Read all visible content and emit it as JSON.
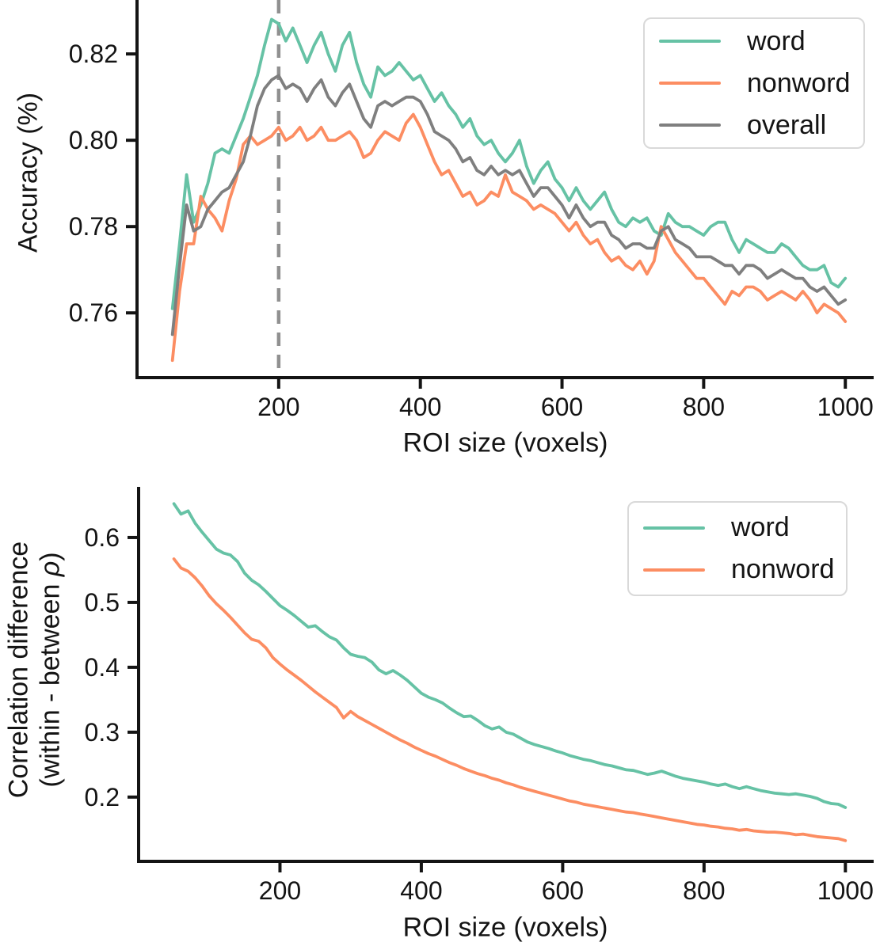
{
  "figure_colors": {
    "word": "#66c2a5",
    "nonword": "#fc8d62",
    "overall": "#7f7f7f",
    "vline": "#909090",
    "spine": "#141414",
    "text": "#141414",
    "legend_border": "#d9d9d9"
  },
  "chart_data": [
    {
      "type": "line",
      "title": "",
      "xlabel": "ROI size (voxels)",
      "ylabel": "Accuracy (%)",
      "xlim": [
        0,
        1040
      ],
      "ylim": [
        0.745,
        0.8325
      ],
      "xticks": [
        200,
        400,
        600,
        800,
        1000
      ],
      "xtick_labels": [
        "200",
        "400",
        "600",
        "800",
        "1000"
      ],
      "ytick_values": [
        0.76,
        0.78,
        0.8,
        0.82
      ],
      "ytick_labels": [
        "0.76",
        "0.78",
        "0.80",
        "0.82"
      ],
      "grid": false,
      "legend_position": "upper right",
      "vline_x": 200,
      "x": [
        50,
        60,
        70,
        80,
        90,
        100,
        110,
        120,
        130,
        140,
        150,
        160,
        170,
        180,
        190,
        200,
        210,
        220,
        230,
        240,
        250,
        260,
        270,
        280,
        290,
        300,
        310,
        320,
        330,
        340,
        350,
        360,
        370,
        380,
        390,
        400,
        410,
        420,
        430,
        440,
        450,
        460,
        470,
        480,
        490,
        500,
        510,
        520,
        530,
        540,
        550,
        560,
        570,
        580,
        590,
        600,
        610,
        620,
        630,
        640,
        650,
        660,
        670,
        680,
        690,
        700,
        710,
        720,
        730,
        740,
        750,
        760,
        770,
        780,
        790,
        800,
        810,
        820,
        830,
        840,
        850,
        860,
        870,
        880,
        890,
        900,
        910,
        920,
        930,
        940,
        950,
        960,
        970,
        980,
        990,
        1000
      ],
      "series": [
        {
          "name": "word",
          "color": "#66c2a5",
          "values": [
            0.761,
            0.776,
            0.792,
            0.781,
            0.785,
            0.79,
            0.797,
            0.798,
            0.797,
            0.801,
            0.805,
            0.81,
            0.815,
            0.822,
            0.828,
            0.827,
            0.823,
            0.826,
            0.822,
            0.818,
            0.822,
            0.825,
            0.82,
            0.816,
            0.822,
            0.825,
            0.818,
            0.813,
            0.81,
            0.817,
            0.815,
            0.816,
            0.818,
            0.816,
            0.814,
            0.815,
            0.812,
            0.809,
            0.811,
            0.808,
            0.806,
            0.803,
            0.805,
            0.801,
            0.799,
            0.8,
            0.797,
            0.795,
            0.797,
            0.8,
            0.794,
            0.79,
            0.793,
            0.795,
            0.791,
            0.789,
            0.786,
            0.789,
            0.786,
            0.784,
            0.786,
            0.788,
            0.784,
            0.781,
            0.78,
            0.782,
            0.781,
            0.782,
            0.779,
            0.778,
            0.783,
            0.781,
            0.78,
            0.78,
            0.779,
            0.778,
            0.78,
            0.781,
            0.781,
            0.777,
            0.774,
            0.777,
            0.776,
            0.775,
            0.774,
            0.774,
            0.776,
            0.775,
            0.773,
            0.771,
            0.77,
            0.77,
            0.771,
            0.767,
            0.766,
            0.768
          ]
        },
        {
          "name": "nonword",
          "color": "#fc8d62",
          "values": [
            0.749,
            0.765,
            0.776,
            0.776,
            0.787,
            0.784,
            0.782,
            0.779,
            0.786,
            0.791,
            0.799,
            0.801,
            0.799,
            0.8,
            0.801,
            0.803,
            0.8,
            0.801,
            0.803,
            0.8,
            0.801,
            0.803,
            0.8,
            0.8,
            0.801,
            0.802,
            0.8,
            0.796,
            0.797,
            0.8,
            0.802,
            0.801,
            0.8,
            0.804,
            0.806,
            0.803,
            0.799,
            0.795,
            0.792,
            0.793,
            0.79,
            0.787,
            0.788,
            0.785,
            0.786,
            0.788,
            0.787,
            0.792,
            0.788,
            0.787,
            0.786,
            0.784,
            0.785,
            0.784,
            0.783,
            0.781,
            0.779,
            0.781,
            0.778,
            0.776,
            0.777,
            0.774,
            0.772,
            0.773,
            0.771,
            0.77,
            0.772,
            0.769,
            0.772,
            0.78,
            0.777,
            0.774,
            0.772,
            0.77,
            0.768,
            0.768,
            0.766,
            0.764,
            0.762,
            0.765,
            0.764,
            0.766,
            0.766,
            0.765,
            0.763,
            0.764,
            0.765,
            0.764,
            0.763,
            0.765,
            0.763,
            0.76,
            0.762,
            0.761,
            0.76,
            0.758
          ]
        },
        {
          "name": "overall",
          "color": "#7f7f7f",
          "values": [
            0.755,
            0.771,
            0.785,
            0.779,
            0.78,
            0.784,
            0.786,
            0.788,
            0.789,
            0.792,
            0.795,
            0.801,
            0.808,
            0.812,
            0.814,
            0.815,
            0.812,
            0.813,
            0.812,
            0.809,
            0.812,
            0.814,
            0.81,
            0.808,
            0.811,
            0.813,
            0.809,
            0.805,
            0.803,
            0.808,
            0.809,
            0.808,
            0.809,
            0.81,
            0.81,
            0.809,
            0.806,
            0.802,
            0.801,
            0.8,
            0.798,
            0.795,
            0.796,
            0.793,
            0.792,
            0.794,
            0.792,
            0.793,
            0.792,
            0.793,
            0.79,
            0.787,
            0.789,
            0.789,
            0.787,
            0.785,
            0.782,
            0.785,
            0.782,
            0.78,
            0.781,
            0.781,
            0.778,
            0.777,
            0.775,
            0.776,
            0.776,
            0.775,
            0.775,
            0.779,
            0.78,
            0.777,
            0.776,
            0.775,
            0.773,
            0.773,
            0.773,
            0.772,
            0.771,
            0.771,
            0.769,
            0.771,
            0.771,
            0.77,
            0.768,
            0.769,
            0.77,
            0.769,
            0.768,
            0.768,
            0.766,
            0.765,
            0.766,
            0.764,
            0.762,
            0.763
          ]
        }
      ]
    },
    {
      "type": "line",
      "title": "",
      "xlabel": "ROI size (voxels)",
      "ylabel_line1": "Correlation difference",
      "ylabel_line2_prefix": "(within - between ",
      "ylabel_rho": "ρ",
      "ylabel_line2_suffix": ")",
      "xlim": [
        0,
        1040
      ],
      "ylim": [
        0.101,
        0.678
      ],
      "xticks": [
        200,
        400,
        600,
        800,
        1000
      ],
      "xtick_labels": [
        "200",
        "400",
        "600",
        "800",
        "1000"
      ],
      "ytick_values": [
        0.2,
        0.3,
        0.4,
        0.5,
        0.6
      ],
      "ytick_labels": [
        "0.2",
        "0.3",
        "0.4",
        "0.5",
        "0.6"
      ],
      "grid": false,
      "legend_position": "upper right",
      "x": [
        50,
        60,
        70,
        80,
        90,
        100,
        110,
        120,
        130,
        140,
        150,
        160,
        170,
        180,
        190,
        200,
        210,
        220,
        230,
        240,
        250,
        260,
        270,
        280,
        290,
        300,
        310,
        320,
        330,
        340,
        350,
        360,
        370,
        380,
        390,
        400,
        410,
        420,
        430,
        440,
        450,
        460,
        470,
        480,
        490,
        500,
        510,
        520,
        530,
        540,
        550,
        560,
        570,
        580,
        590,
        600,
        610,
        620,
        630,
        640,
        650,
        660,
        670,
        680,
        690,
        700,
        710,
        720,
        730,
        740,
        750,
        760,
        770,
        780,
        790,
        800,
        810,
        820,
        830,
        840,
        850,
        860,
        870,
        880,
        890,
        900,
        910,
        920,
        930,
        940,
        950,
        960,
        970,
        980,
        990,
        1000
      ],
      "series": [
        {
          "name": "word",
          "color": "#66c2a5",
          "values": [
            0.652,
            0.636,
            0.641,
            0.622,
            0.608,
            0.595,
            0.582,
            0.576,
            0.573,
            0.563,
            0.545,
            0.534,
            0.527,
            0.517,
            0.506,
            0.495,
            0.488,
            0.48,
            0.471,
            0.462,
            0.464,
            0.455,
            0.447,
            0.442,
            0.43,
            0.42,
            0.417,
            0.415,
            0.408,
            0.396,
            0.39,
            0.395,
            0.388,
            0.38,
            0.37,
            0.36,
            0.354,
            0.35,
            0.345,
            0.337,
            0.33,
            0.324,
            0.325,
            0.318,
            0.31,
            0.305,
            0.308,
            0.3,
            0.297,
            0.291,
            0.285,
            0.281,
            0.278,
            0.275,
            0.271,
            0.268,
            0.264,
            0.261,
            0.258,
            0.256,
            0.253,
            0.25,
            0.248,
            0.245,
            0.242,
            0.241,
            0.238,
            0.235,
            0.237,
            0.24,
            0.236,
            0.232,
            0.229,
            0.227,
            0.225,
            0.223,
            0.22,
            0.218,
            0.22,
            0.216,
            0.213,
            0.216,
            0.213,
            0.21,
            0.208,
            0.206,
            0.205,
            0.204,
            0.205,
            0.203,
            0.201,
            0.198,
            0.193,
            0.19,
            0.189,
            0.184
          ]
        },
        {
          "name": "nonword",
          "color": "#fc8d62",
          "values": [
            0.567,
            0.553,
            0.548,
            0.538,
            0.525,
            0.51,
            0.498,
            0.488,
            0.477,
            0.465,
            0.453,
            0.443,
            0.44,
            0.43,
            0.415,
            0.405,
            0.396,
            0.388,
            0.38,
            0.371,
            0.362,
            0.354,
            0.346,
            0.338,
            0.322,
            0.332,
            0.324,
            0.318,
            0.312,
            0.306,
            0.3,
            0.294,
            0.288,
            0.283,
            0.277,
            0.272,
            0.267,
            0.263,
            0.258,
            0.253,
            0.249,
            0.244,
            0.24,
            0.236,
            0.233,
            0.229,
            0.226,
            0.222,
            0.219,
            0.215,
            0.212,
            0.209,
            0.206,
            0.203,
            0.2,
            0.197,
            0.194,
            0.192,
            0.189,
            0.187,
            0.185,
            0.183,
            0.181,
            0.179,
            0.177,
            0.176,
            0.174,
            0.172,
            0.17,
            0.168,
            0.166,
            0.164,
            0.162,
            0.16,
            0.158,
            0.157,
            0.155,
            0.154,
            0.152,
            0.151,
            0.149,
            0.15,
            0.148,
            0.147,
            0.146,
            0.146,
            0.145,
            0.144,
            0.142,
            0.143,
            0.141,
            0.139,
            0.138,
            0.137,
            0.136,
            0.133
          ]
        }
      ]
    }
  ]
}
